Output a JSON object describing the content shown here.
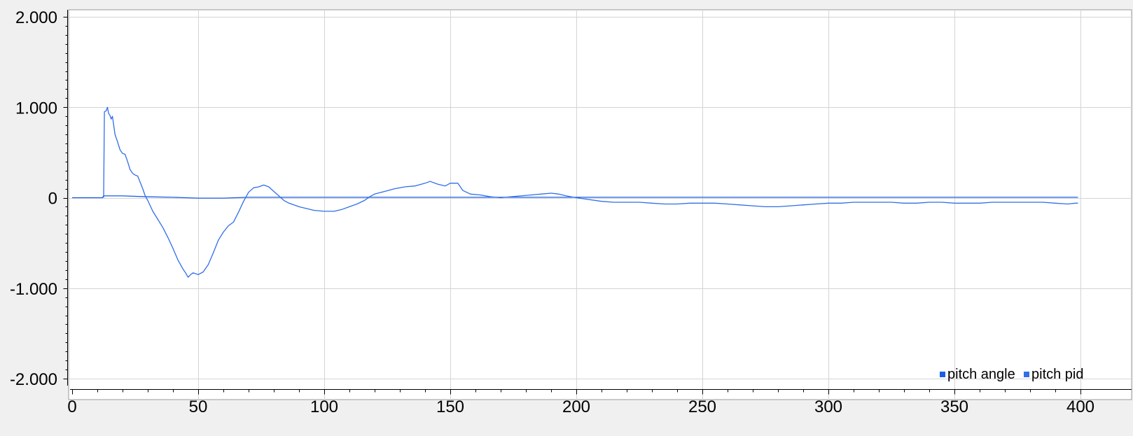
{
  "chart_data": {
    "type": "line",
    "title": "",
    "xlabel": "",
    "ylabel": "",
    "xlim": [
      0,
      400
    ],
    "ylim": [
      -2000,
      2000
    ],
    "x_ticks": [
      0,
      50,
      100,
      150,
      200,
      250,
      300,
      350,
      400
    ],
    "x_tick_labels": [
      "0",
      "50",
      "100",
      "150",
      "200",
      "250",
      "300",
      "350",
      "400"
    ],
    "y_ticks": [
      2000,
      1000,
      0,
      -1000,
      -2000
    ],
    "y_tick_labels": [
      "2.000",
      "1.000",
      "0",
      "-1.000",
      "-2.000"
    ],
    "grid": true,
    "legend_position": "bottom-right",
    "series": [
      {
        "name": "pitch angle",
        "color": "#1a5ee6",
        "points": [
          [
            0,
            0
          ],
          [
            12,
            0
          ],
          [
            12.5,
            20
          ],
          [
            20,
            20
          ],
          [
            30,
            10
          ],
          [
            40,
            5
          ],
          [
            50,
            -5
          ],
          [
            60,
            -5
          ],
          [
            70,
            5
          ],
          [
            80,
            5
          ],
          [
            100,
            5
          ],
          [
            150,
            5
          ],
          [
            200,
            5
          ],
          [
            250,
            5
          ],
          [
            300,
            5
          ],
          [
            350,
            5
          ],
          [
            399,
            5
          ]
        ]
      },
      {
        "name": "pitch pid",
        "color": "#2f6fe8",
        "points": [
          [
            12.5,
            0
          ],
          [
            12.8,
            950
          ],
          [
            13.5,
            960
          ],
          [
            14,
            1000
          ],
          [
            14.5,
            930
          ],
          [
            15,
            910
          ],
          [
            15.5,
            870
          ],
          [
            16,
            900
          ],
          [
            16.5,
            800
          ],
          [
            17,
            700
          ],
          [
            18,
            620
          ],
          [
            19,
            530
          ],
          [
            20,
            490
          ],
          [
            21,
            480
          ],
          [
            22,
            400
          ],
          [
            23,
            310
          ],
          [
            24,
            270
          ],
          [
            25,
            250
          ],
          [
            26,
            240
          ],
          [
            27,
            170
          ],
          [
            28,
            100
          ],
          [
            29,
            20
          ],
          [
            30,
            -30
          ],
          [
            32,
            -150
          ],
          [
            34,
            -240
          ],
          [
            36,
            -330
          ],
          [
            38,
            -440
          ],
          [
            40,
            -560
          ],
          [
            42,
            -690
          ],
          [
            44,
            -790
          ],
          [
            45,
            -830
          ],
          [
            46,
            -880
          ],
          [
            47,
            -850
          ],
          [
            48,
            -830
          ],
          [
            50,
            -850
          ],
          [
            52,
            -820
          ],
          [
            54,
            -740
          ],
          [
            56,
            -610
          ],
          [
            58,
            -470
          ],
          [
            60,
            -380
          ],
          [
            62,
            -310
          ],
          [
            64,
            -270
          ],
          [
            66,
            -160
          ],
          [
            68,
            -40
          ],
          [
            70,
            60
          ],
          [
            72,
            110
          ],
          [
            74,
            120
          ],
          [
            76,
            140
          ],
          [
            78,
            120
          ],
          [
            80,
            70
          ],
          [
            82,
            20
          ],
          [
            84,
            -30
          ],
          [
            86,
            -60
          ],
          [
            88,
            -80
          ],
          [
            90,
            -100
          ],
          [
            93,
            -120
          ],
          [
            96,
            -140
          ],
          [
            100,
            -150
          ],
          [
            104,
            -150
          ],
          [
            107,
            -130
          ],
          [
            110,
            -100
          ],
          [
            113,
            -70
          ],
          [
            116,
            -30
          ],
          [
            118,
            10
          ],
          [
            120,
            40
          ],
          [
            124,
            70
          ],
          [
            128,
            100
          ],
          [
            132,
            120
          ],
          [
            136,
            130
          ],
          [
            140,
            160
          ],
          [
            142,
            180
          ],
          [
            145,
            150
          ],
          [
            148,
            130
          ],
          [
            150,
            160
          ],
          [
            153,
            160
          ],
          [
            155,
            80
          ],
          [
            158,
            40
          ],
          [
            162,
            30
          ],
          [
            166,
            10
          ],
          [
            170,
            0
          ],
          [
            174,
            10
          ],
          [
            178,
            20
          ],
          [
            182,
            30
          ],
          [
            186,
            40
          ],
          [
            190,
            50
          ],
          [
            193,
            40
          ],
          [
            196,
            20
          ],
          [
            200,
            0
          ],
          [
            205,
            -20
          ],
          [
            210,
            -40
          ],
          [
            215,
            -50
          ],
          [
            220,
            -50
          ],
          [
            225,
            -50
          ],
          [
            230,
            -60
          ],
          [
            235,
            -70
          ],
          [
            240,
            -70
          ],
          [
            245,
            -60
          ],
          [
            250,
            -60
          ],
          [
            255,
            -60
          ],
          [
            260,
            -70
          ],
          [
            265,
            -80
          ],
          [
            270,
            -90
          ],
          [
            275,
            -100
          ],
          [
            280,
            -100
          ],
          [
            285,
            -90
          ],
          [
            290,
            -80
          ],
          [
            295,
            -70
          ],
          [
            300,
            -60
          ],
          [
            305,
            -60
          ],
          [
            310,
            -50
          ],
          [
            315,
            -50
          ],
          [
            320,
            -50
          ],
          [
            325,
            -50
          ],
          [
            330,
            -60
          ],
          [
            335,
            -60
          ],
          [
            340,
            -50
          ],
          [
            345,
            -50
          ],
          [
            350,
            -60
          ],
          [
            355,
            -60
          ],
          [
            360,
            -60
          ],
          [
            365,
            -50
          ],
          [
            370,
            -50
          ],
          [
            375,
            -50
          ],
          [
            380,
            -50
          ],
          [
            385,
            -50
          ],
          [
            390,
            -60
          ],
          [
            395,
            -70
          ],
          [
            398,
            -60
          ],
          [
            399,
            -60
          ]
        ]
      }
    ]
  }
}
